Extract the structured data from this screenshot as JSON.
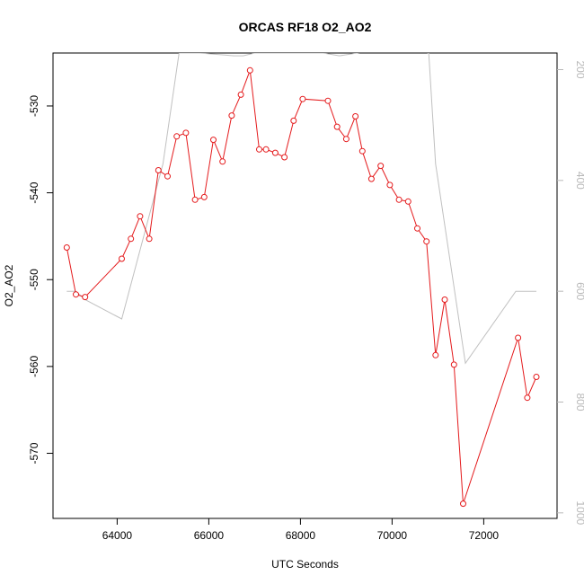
{
  "chart_data": {
    "type": "line",
    "title": "ORCAS RF18 O2_AO2",
    "xlabel": "UTC Seconds",
    "ylabel": "O2_AO2",
    "xlim": [
      62600,
      73600
    ],
    "ylim": [
      -577.5,
      -523.9
    ],
    "x_ticks": [
      64000,
      66000,
      68000,
      70000,
      72000
    ],
    "y_ticks": [
      -570,
      -560,
      -550,
      -540,
      -530
    ],
    "y2_ticks": [
      200,
      400,
      600,
      800,
      1000
    ],
    "y2lim": [
      1010,
      170
    ],
    "grid": false,
    "colors": {
      "primary": "#e41a1c",
      "secondary": "#c0c0c0",
      "axis": "#000000",
      "secondary_axis": "#b8b8b8"
    },
    "series": [
      {
        "x": [
          62900,
          63100,
          63300,
          64100,
          64300,
          64500,
          64700,
          64900,
          65100,
          65300,
          65500,
          65700,
          65900,
          66100,
          66300,
          66500,
          66700,
          66900,
          67100,
          67250,
          67450,
          67650,
          67850,
          68050,
          68600,
          68800,
          69000,
          69200,
          69350,
          69550,
          69750,
          69950,
          70150,
          70350,
          70550,
          70750,
          70950,
          71150,
          71350,
          71550,
          72750,
          72950,
          73150
        ],
        "y": [
          -546.3,
          -551.7,
          -552.0,
          -547.6,
          -545.3,
          -542.7,
          -545.3,
          -537.4,
          -538.1,
          -533.5,
          -533.1,
          -540.8,
          -540.5,
          -533.9,
          -536.4,
          -531.1,
          -528.7,
          -525.9,
          -535.0,
          -535.0,
          -535.4,
          -535.9,
          -531.7,
          -529.2,
          -529.4,
          -532.4,
          -533.8,
          -531.2,
          -535.2,
          -538.4,
          -536.9,
          -539.1,
          -540.8,
          -541.0,
          -544.1,
          -545.6,
          -558.7,
          -552.3,
          -559.8,
          -575.8,
          -556.7,
          -563.6,
          -561.2
        ]
      },
      {
        "x": [
          62900,
          63100,
          63300,
          64100,
          65000,
          65350,
          65800,
          66550,
          66750,
          67000,
          68000,
          68500,
          68850,
          70000,
          70300,
          70800,
          70950,
          71600,
          72700,
          73150
        ],
        "y2": [
          600,
          600,
          615,
          650,
          370,
          170,
          170,
          175,
          175,
          170,
          170,
          170,
          175,
          160,
          160,
          170,
          370,
          730,
          600,
          600
        ]
      }
    ]
  }
}
